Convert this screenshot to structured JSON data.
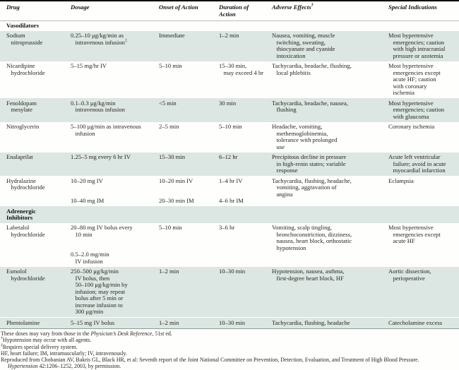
{
  "colors": {
    "row_shade": "#dce6e2",
    "top_border": "#000000",
    "dosage_marker": "#3f658f"
  },
  "table": {
    "headers": [
      "Drug",
      "Dosage",
      "Onset of Action",
      "Duration of Action",
      "Adverse Effects",
      "Special Indications"
    ],
    "adverse_sup": "†",
    "rows": [
      {
        "label": "Vasodilators"
      },
      {
        "drug": "Sodium\n   nitroprusside",
        "dosage": "0.25–10 μg/kg/min as\n   intravenous infusion",
        "dosage_sup": "‡",
        "onset": "Immediate",
        "duration": "1–2 min",
        "adverse": "Nausea, vomiting, muscle\n   twitching, sweating,\n   thiocyanate and cyanide\n   intoxication",
        "special": "Most hypertensive\n   emergencies; caution\n   with high intracranial\n   pressure or azotemia"
      },
      {
        "drug": "Nicardipine\n   hydrochloride",
        "dosage": "5–15 mg/hr IV",
        "onset": "5–10 min",
        "duration": "15–30 min,\n   may exceed 4 hr",
        "adverse": "Tachycardia, headache, flushing,\n   local phlebitis",
        "special": "Most hypertensive\n   emergencies except\n   acute HF; caution\n   with coronary\n   ischemia"
      },
      {
        "drug": "Fenoldopam\n   mesylate",
        "dosage": "0.1–0.3 μg/kg/min\n   intravenous infusion",
        "onset": "<5 min",
        "duration": "30 min",
        "adverse": "Tachycardia, headache, nausea,\n   flushing",
        "special": "Most hypertensive\n   emergencies; caution\n   with glaucoma"
      },
      {
        "drug": "Nitroglycerin",
        "dosage": "5–100 μg/min as intravenous\n   infusion",
        "onset": "2–5 min",
        "duration": "5–10 min",
        "adverse": "Headache, vomiting,\n   methemoglobinemia,\n   tolerance with prolonged\n   use",
        "special": "Coronary ischemia"
      },
      {
        "drug": "Enalaprilat",
        "dosage": "1.25–5 mg every 6 hr IV",
        "onset": "15–30 min",
        "duration": "6–12 hr",
        "adverse": "Precipitous decline in pressure\n   in high-renin states; variable\n   response",
        "special": "Acute left ventricular\n   failure; avoid in acute\n   myocardial infarction"
      },
      {
        "drug": "Hydralazine\n   hydrochloride",
        "dosage": "10–20 mg IV\n\n\n10–40 mg IM",
        "onset": "10–20 min IV\n\n\n20–30 min IM",
        "duration": "1–4 hr IV\n\n\n4–6 hr IM",
        "adverse": "Tachycardia, flushing, headache,\n   vomiting, aggravation of\n   angina",
        "special": "Eclampsia"
      },
      {
        "label": "Adrenergic\nInhibitors"
      },
      {
        "drug": "Labetalol\n   hydrochloride",
        "dosage": "20–80 mg IV bolus every\n   10 min\n\n\n0.5–2.0 mg/min\n   IV infusion",
        "onset": "5–10 min",
        "duration": "3–6 hr",
        "adverse": "Vomiting, scalp tingling,\n   bronchoconstriction, dizziness,\n   nausea, heart block, orthostatic\n   hypotension",
        "special": "Most hypertensive\n   emergencies except\n   acute HF"
      },
      {
        "drug": "Esmolol\n   hydrochloride",
        "dosage": "250–500 μg/kg/min\n   IV bolus, then\n   50–100 μg/kg/min by\n   infusion; may repeat\n   bolus after 5 min or\n   increase infusion to\n   300 μg/min",
        "onset": "1–2 min",
        "duration": "10–30 min",
        "adverse": "Hypotension, nausea, asthma,\n   first-degree heart block, HF",
        "special": "Aortic dissection,\n   perioperative"
      },
      {
        "drug": "Phentolamine",
        "dosage": "5–15 mg IV bolus",
        "onset": "1–2 min",
        "duration": "10–30 min",
        "adverse": "Tachycardia, flushing, headache",
        "special": "Catecholamine excess"
      }
    ]
  },
  "footnotes": {
    "lines": [
      {
        "pre": "These doses may vary from those in the ",
        "italic": "Physician’s Desk Reference",
        "post": ", 51st ed."
      },
      {
        "sup": "†",
        "pre": "Hypotension may occur with all agents."
      },
      {
        "sup": "‡",
        "pre": "Requires special delivery system."
      },
      {
        "pre": "HF, heart failure; IM, intramuscularly; IV, intravenously."
      },
      {
        "pre": "Reproduced from Chobanian AV, Bakris GL, Black HR, et al: Seventh report of the Joint National Committee on Prevention, Detection, Evaluation, and Treatment of High Blood Pressure.\n",
        "italic": "Hypertension",
        "post": " 42:1206–1252, 2003, by permission."
      }
    ]
  }
}
